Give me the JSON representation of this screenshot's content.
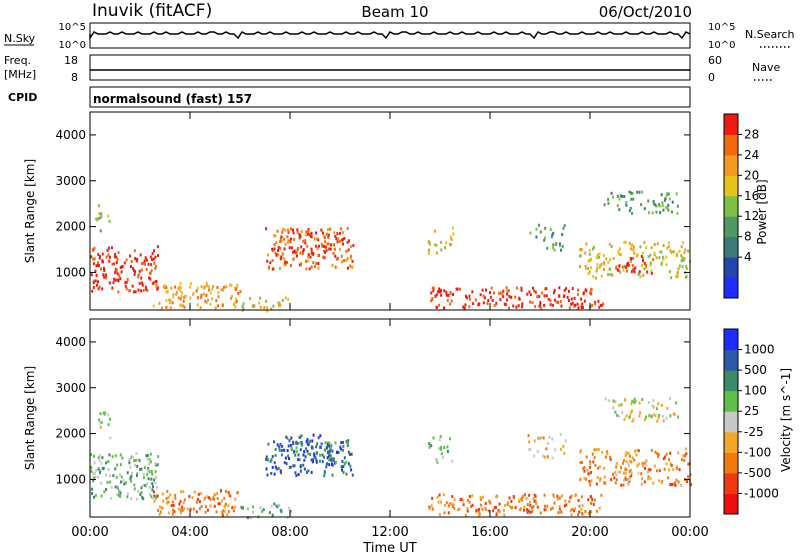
{
  "header": {
    "station": "Inuvik (fitACF)",
    "beam": "Beam 10",
    "date": "06/Oct/2010"
  },
  "status_panels": {
    "nsky_label": "N.Sky",
    "nsky_ticks": [
      "10^5",
      "10^0"
    ],
    "nsearch_label": "N.Search",
    "nsearch_ticks": [
      "10^5",
      "10^0"
    ],
    "freq_label": "Freq.",
    "freq_unit": "[MHz]",
    "freq_ticks": [
      "18",
      "8"
    ],
    "nave_label": "Nave",
    "nave_ticks": [
      "60",
      "0"
    ],
    "cpid_label": "CPID",
    "cpid_value": "normalsound (fast) 157"
  },
  "chart_data": [
    {
      "type": "heatmap",
      "name": "power",
      "ylabel": "Slant Range [km]",
      "xlabel": "Time UT",
      "yticks": [
        "1000",
        "2000",
        "3000",
        "4000"
      ],
      "ylim": [
        180,
        4500
      ],
      "xlim_hours": [
        0,
        24
      ],
      "colorbar_label": "Power [dB]",
      "colorbar_ticks": [
        "4",
        "8",
        "12",
        "16",
        "20",
        "24",
        "28"
      ],
      "colorbar_colors": [
        "#1f2cff",
        "#2546a8",
        "#3b7a78",
        "#4f9a63",
        "#7dc043",
        "#e6c21d",
        "#f39a20",
        "#f26a10",
        "#ee1c10"
      ]
    },
    {
      "type": "heatmap",
      "name": "velocity",
      "ylabel": "Slant Range [km]",
      "xlabel": "Time UT",
      "yticks": [
        "1000",
        "2000",
        "3000",
        "4000"
      ],
      "ylim": [
        180,
        4500
      ],
      "xlim_hours": [
        0,
        24
      ],
      "colorbar_label": "Velocity [m s^-1]",
      "colorbar_ticks": [
        "1000",
        "500",
        "100",
        "25",
        "-25",
        "-100",
        "-500",
        "-1000"
      ],
      "colorbar_colors": [
        "#1f2cff",
        "#2b5aa8",
        "#3b8a68",
        "#5ec04a",
        "#c8c8c8",
        "#f2a72a",
        "#f07a10",
        "#ee3a10",
        "#ee1010"
      ]
    }
  ],
  "time_axis": {
    "ticks": [
      "00:00",
      "04:00",
      "08:00",
      "12:00",
      "16:00",
      "20:00",
      "00:00"
    ],
    "label": "Time UT"
  }
}
